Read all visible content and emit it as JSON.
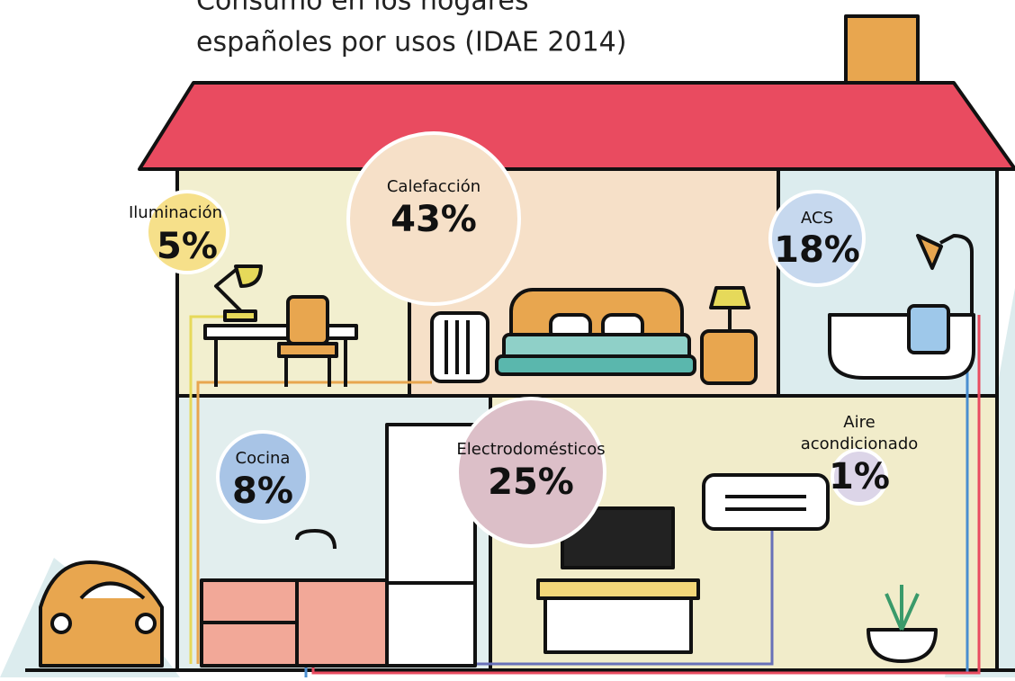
{
  "title_lines": [
    "Consumo en los hogares",
    "españoles por usos (IDAE 2014)"
  ],
  "items": [
    {
      "label": "Iluminación",
      "value": "5%"
    },
    {
      "label": "Calefacción",
      "value": "43%"
    },
    {
      "label": "ACS",
      "value": "18%"
    },
    {
      "label": "Cocina",
      "value": "8%"
    },
    {
      "label": "Electrodomésticos",
      "value": "25%"
    },
    {
      "label": "Aire acondicionado",
      "value": "1%"
    }
  ]
}
